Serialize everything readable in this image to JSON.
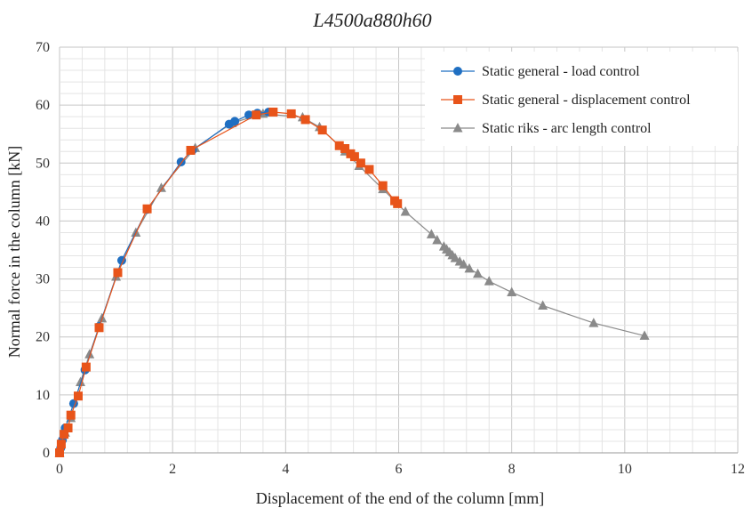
{
  "chart_data": {
    "type": "scatter",
    "title": "L4500a880h60",
    "xlabel": "Displacement of the end of the column [mm]",
    "ylabel": "Normal force in the column [kN]",
    "xlim": [
      0,
      12
    ],
    "ylim": [
      0,
      70
    ],
    "x_ticks": [
      "0",
      "2",
      "4",
      "6",
      "8",
      "10",
      "12"
    ],
    "y_ticks": [
      "0",
      "10",
      "20",
      "30",
      "40",
      "50",
      "60",
      "70"
    ],
    "grid": true,
    "legend_position": "top-right",
    "series": [
      {
        "name": "Static general - load control",
        "color": "#1f6fc2",
        "marker": "circle",
        "points": [
          [
            0,
            0
          ],
          [
            0.02,
            0.8
          ],
          [
            0.05,
            2.2
          ],
          [
            0.1,
            4.3
          ],
          [
            0.25,
            8.5
          ],
          [
            0.45,
            14.3
          ],
          [
            0.7,
            21.8
          ],
          [
            1.1,
            33.2
          ],
          [
            1.55,
            42.0
          ],
          [
            2.15,
            50.2
          ],
          [
            2.35,
            52.2
          ],
          [
            3.0,
            56.7
          ],
          [
            3.1,
            57.2
          ],
          [
            3.35,
            58.3
          ],
          [
            3.5,
            58.6
          ],
          [
            3.7,
            58.8
          ]
        ]
      },
      {
        "name": "Static general - displacement control",
        "color": "#e8541a",
        "marker": "square",
        "points": [
          [
            0,
            0
          ],
          [
            0.03,
            1.5
          ],
          [
            0.08,
            3.2
          ],
          [
            0.15,
            4.3
          ],
          [
            0.2,
            6.5
          ],
          [
            0.33,
            9.8
          ],
          [
            0.47,
            14.8
          ],
          [
            0.7,
            21.6
          ],
          [
            1.03,
            31.1
          ],
          [
            1.55,
            42.1
          ],
          [
            2.32,
            52.2
          ],
          [
            3.48,
            58.3
          ],
          [
            3.78,
            58.8
          ],
          [
            4.1,
            58.5
          ],
          [
            4.35,
            57.5
          ],
          [
            4.65,
            55.7
          ],
          [
            4.95,
            53.0
          ],
          [
            5.05,
            52.5
          ],
          [
            5.15,
            51.6
          ],
          [
            5.22,
            51.1
          ],
          [
            5.33,
            50.0
          ],
          [
            5.48,
            48.9
          ],
          [
            5.72,
            46.1
          ],
          [
            5.93,
            43.5
          ],
          [
            5.98,
            43.0
          ]
        ]
      },
      {
        "name": "Static riks - arc length control",
        "color": "#8a8a8a",
        "marker": "triangle",
        "points": [
          [
            0,
            0
          ],
          [
            0.1,
            3.5
          ],
          [
            0.2,
            6.0
          ],
          [
            0.37,
            12.2
          ],
          [
            0.53,
            17.0
          ],
          [
            0.75,
            23.2
          ],
          [
            1.0,
            30.4
          ],
          [
            1.35,
            38.0
          ],
          [
            1.8,
            45.7
          ],
          [
            2.4,
            52.6
          ],
          [
            3.05,
            56.9
          ],
          [
            3.6,
            58.5
          ],
          [
            4.3,
            57.9
          ],
          [
            4.6,
            56.2
          ],
          [
            5.05,
            52.0
          ],
          [
            5.3,
            49.5
          ],
          [
            5.72,
            45.5
          ],
          [
            6.12,
            41.6
          ],
          [
            6.58,
            37.7
          ],
          [
            6.68,
            36.7
          ],
          [
            6.8,
            35.6
          ],
          [
            6.85,
            35.1
          ],
          [
            6.9,
            34.6
          ],
          [
            6.95,
            34.1
          ],
          [
            7.0,
            33.6
          ],
          [
            7.08,
            33.0
          ],
          [
            7.15,
            32.5
          ],
          [
            7.25,
            31.8
          ],
          [
            7.4,
            30.9
          ],
          [
            7.6,
            29.6
          ],
          [
            8.0,
            27.7
          ],
          [
            8.55,
            25.4
          ],
          [
            9.45,
            22.4
          ],
          [
            10.35,
            20.2
          ]
        ]
      }
    ]
  }
}
